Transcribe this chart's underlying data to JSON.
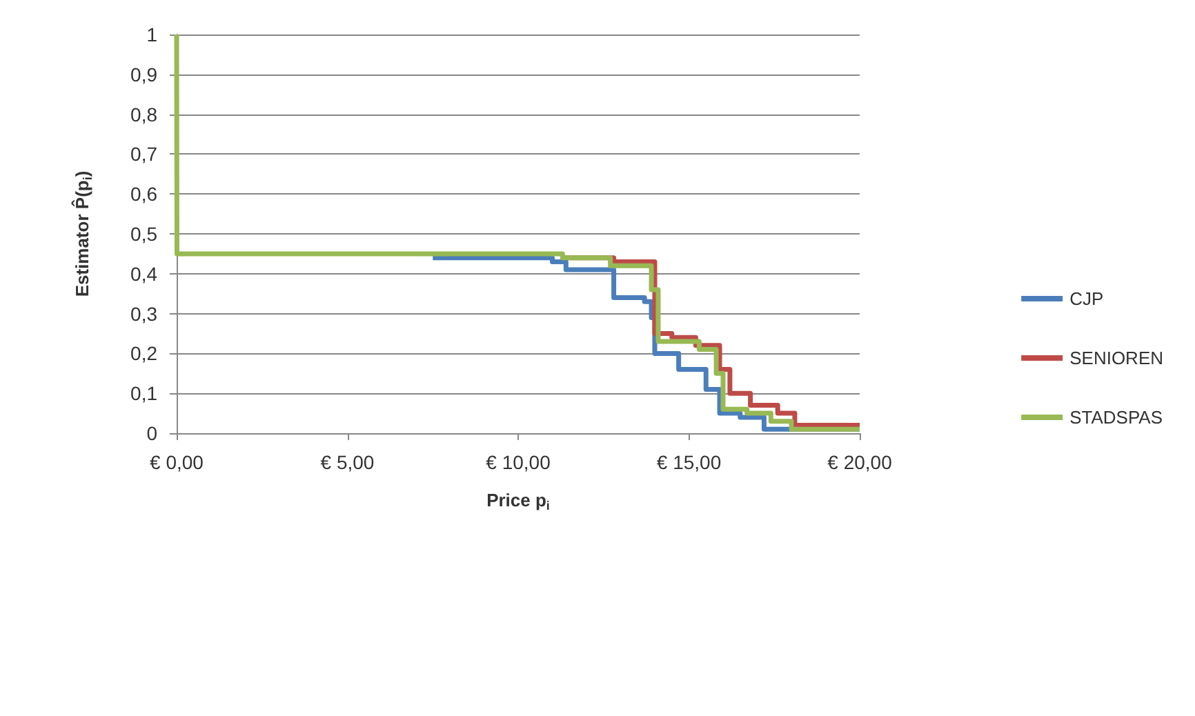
{
  "chart_data": {
    "type": "step",
    "xlabel": "Price p$_{i}$",
    "ylabel": "Estimator P̂(p$_{i}$)",
    "xlim": [
      0,
      20
    ],
    "xticks": [
      {
        "value": 0,
        "label": "€ 0,00"
      },
      {
        "value": 5,
        "label": "€ 5,00"
      },
      {
        "value": 10,
        "label": "€ 10,00"
      },
      {
        "value": 15,
        "label": "€ 15,00"
      },
      {
        "value": 20,
        "label": "€ 20,00"
      }
    ],
    "ylim": [
      0,
      1
    ],
    "yticks": [
      0,
      {
        "value": 0.1,
        "label": "0,1"
      },
      {
        "value": 0.2,
        "label": "0,2"
      },
      {
        "value": 0.3,
        "label": "0,3"
      },
      {
        "value": 0.4,
        "label": "0,4"
      },
      {
        "value": 0.5,
        "label": "0,5"
      },
      {
        "value": 0.6,
        "label": "0,6"
      },
      {
        "value": 0.7,
        "label": "0,7"
      },
      {
        "value": 0.8,
        "label": "0,8"
      },
      {
        "value": 0.9,
        "label": "0,9"
      },
      1
    ],
    "grid": "y",
    "legend": "right",
    "marker": "none",
    "series": [
      {
        "name": "CJP",
        "color": "#4a7ebb",
        "x": [
          7.5,
          11.0,
          11.4,
          12.8,
          13.7,
          13.9,
          14.0,
          14.7,
          15.5,
          15.9,
          16.5,
          17.2,
          20
        ],
        "values": [
          0.44,
          0.43,
          0.41,
          0.34,
          0.33,
          0.29,
          0.2,
          0.16,
          0.11,
          0.05,
          0.04,
          0.01,
          0.01
        ]
      },
      {
        "name": "SENIOREN",
        "color": "#be4b48",
        "x": [
          11.3,
          12.8,
          14.0,
          14.5,
          15.2,
          15.9,
          16.2,
          16.8,
          17.6,
          18.1,
          20
        ],
        "values": [
          0.44,
          0.43,
          0.25,
          0.24,
          0.22,
          0.16,
          0.1,
          0.07,
          0.05,
          0.02,
          0.02
        ]
      },
      {
        "name": "STADSPAS",
        "color": "#98b954",
        "x": [
          0,
          0.01,
          11.3,
          12.7,
          13.9,
          14.1,
          15.3,
          15.8,
          16.0,
          16.7,
          17.4,
          18.0,
          20
        ],
        "values": [
          1,
          0.45,
          0.44,
          0.42,
          0.36,
          0.23,
          0.21,
          0.15,
          0.06,
          0.05,
          0.03,
          0.01,
          0.01
        ]
      }
    ]
  }
}
